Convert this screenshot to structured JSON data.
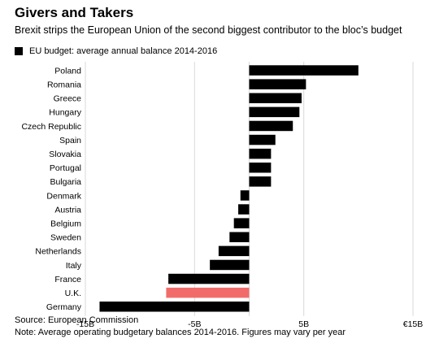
{
  "title": "Givers and Takers",
  "subtitle": "Brexit strips the European Union of the second biggest contributor to the bloc’s budget",
  "source": "Source: European Commission",
  "note": "Note: Average operating budgetary balances 2014-2016. Figures may vary per year",
  "colors": {
    "bar": "#000000",
    "highlight": "#f26b6b",
    "grid": "#d9d9d9"
  },
  "chart_data": {
    "type": "bar",
    "orientation": "horizontal",
    "categories": [
      "Poland",
      "Romania",
      "Greece",
      "Hungary",
      "Czech Republic",
      "Spain",
      "Slovakia",
      "Portugal",
      "Bulgaria",
      "Denmark",
      "Austria",
      "Belgium",
      "Sweden",
      "Netherlands",
      "Italy",
      "France",
      "U.K.",
      "Germany"
    ],
    "series": [
      {
        "name": "EU budget: average annual balance 2014-2016",
        "values": [
          10.0,
          5.2,
          4.8,
          4.6,
          4.0,
          2.4,
          2.0,
          2.0,
          2.0,
          -0.8,
          -1.0,
          -1.4,
          -1.8,
          -2.8,
          -3.6,
          -7.4,
          -7.6,
          -13.7
        ]
      }
    ],
    "highlight_category": "U.K.",
    "xlim": [
      -15,
      15
    ],
    "xticks": [
      -15,
      -5,
      5,
      15
    ],
    "xtick_labels": [
      "-15B",
      "-5B",
      "5B",
      "€15B"
    ],
    "grid": true,
    "legend_position": "top-left"
  }
}
